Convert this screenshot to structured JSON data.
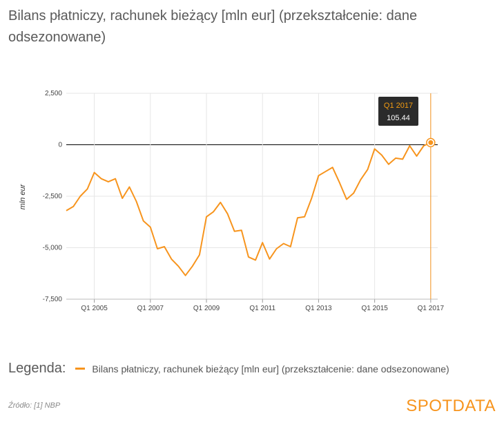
{
  "title": "Bilans płatniczy, rachunek bieżący [mln eur] (przekształcenie: dane odsezonowane)",
  "legend": {
    "title": "Legenda:",
    "item": "Bilans płatniczy, rachunek bieżący [mln eur] (przekształcenie: dane odsezonowane)"
  },
  "source": "Źródło: [1] NBP",
  "brand": "SPOTDATA",
  "tooltip": {
    "date": "Q1 2017",
    "value": "105.44"
  },
  "colors": {
    "series": "#f7941d",
    "grid": "#e6e6e6",
    "zero": "#000000",
    "tooltip_bg": "#2b2b2b"
  },
  "chart_data": {
    "type": "line",
    "ylabel": "mln eur",
    "ylim": [
      -7500,
      2500
    ],
    "y_ticks": [
      {
        "value": 2500,
        "label": "2,500"
      },
      {
        "value": 0,
        "label": "0"
      },
      {
        "value": -2500,
        "label": "-2,500"
      },
      {
        "value": -5000,
        "label": "-5,000"
      },
      {
        "value": -7500,
        "label": "-7,500"
      }
    ],
    "x_ticks": [
      {
        "year": 2005,
        "label": "Q1 2005"
      },
      {
        "year": 2007,
        "label": "Q1 2007"
      },
      {
        "year": 2009,
        "label": "Q1 2009"
      },
      {
        "year": 2011,
        "label": "Q1 2011"
      },
      {
        "year": 2013,
        "label": "Q1 2013"
      },
      {
        "year": 2015,
        "label": "Q1 2015"
      },
      {
        "year": 2017,
        "label": "Q1 2017"
      }
    ],
    "xlim": [
      2004.0,
      2017.25
    ],
    "grid": true,
    "series": [
      {
        "name": "Bilans płatniczy, rachunek bieżący [mln eur] (przekształcenie: dane odsezonowane)",
        "x": [
          "Q1 2004",
          "Q2 2004",
          "Q3 2004",
          "Q4 2004",
          "Q1 2005",
          "Q2 2005",
          "Q3 2005",
          "Q4 2005",
          "Q1 2006",
          "Q2 2006",
          "Q3 2006",
          "Q4 2006",
          "Q1 2007",
          "Q2 2007",
          "Q3 2007",
          "Q4 2007",
          "Q1 2008",
          "Q2 2008",
          "Q3 2008",
          "Q4 2008",
          "Q1 2009",
          "Q2 2009",
          "Q3 2009",
          "Q4 2009",
          "Q1 2010",
          "Q2 2010",
          "Q3 2010",
          "Q4 2010",
          "Q1 2011",
          "Q2 2011",
          "Q3 2011",
          "Q4 2011",
          "Q1 2012",
          "Q2 2012",
          "Q3 2012",
          "Q4 2012",
          "Q1 2013",
          "Q2 2013",
          "Q3 2013",
          "Q4 2013",
          "Q1 2014",
          "Q2 2014",
          "Q3 2014",
          "Q4 2014",
          "Q1 2015",
          "Q2 2015",
          "Q3 2015",
          "Q4 2015",
          "Q1 2016",
          "Q2 2016",
          "Q3 2016",
          "Q4 2016",
          "Q1 2017"
        ],
        "values": [
          -3200,
          -3000,
          -2500,
          -2150,
          -1350,
          -1650,
          -1800,
          -1650,
          -2600,
          -2050,
          -2750,
          -3700,
          -4000,
          -5050,
          -4950,
          -5550,
          -5900,
          -6350,
          -5900,
          -5350,
          -3500,
          -3250,
          -2800,
          -3350,
          -4200,
          -4150,
          -5450,
          -5600,
          -4750,
          -5550,
          -5050,
          -4800,
          -4950,
          -3550,
          -3500,
          -2600,
          -1500,
          -1300,
          -1100,
          -1850,
          -2650,
          -2350,
          -1700,
          -1200,
          -200,
          -500,
          -950,
          -650,
          -700,
          -50,
          -550,
          -50,
          105.44
        ]
      }
    ]
  }
}
